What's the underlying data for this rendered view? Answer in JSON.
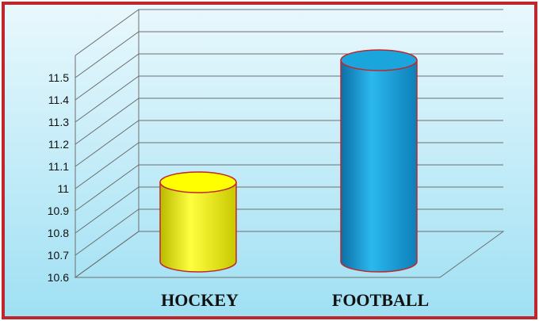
{
  "colors": {
    "frame": "#c0272d",
    "background_top": "#e9f8fd",
    "background_bottom": "#9fe0f3",
    "grid": "#6e6e6e",
    "cylinder_outline": "#c0272d",
    "series_colors": [
      "#ffff00",
      "#1aa6dc"
    ]
  },
  "chart_data": {
    "type": "bar",
    "style": "3d-cylinder",
    "categories": [
      "HOCKEY",
      "FOOTBALL"
    ],
    "values": [
      10.95,
      11.5
    ],
    "ylim": [
      10.6,
      11.5
    ],
    "yticks": [
      10.6,
      10.7,
      10.8,
      10.9,
      11,
      11.1,
      11.2,
      11.3,
      11.4,
      11.5
    ],
    "ytick_labels": [
      "10.6",
      "10.7",
      "10.8",
      "10.9",
      "11",
      "11.1",
      "11.2",
      "11.3",
      "11.4",
      "11.5"
    ],
    "grid": true,
    "legend": "none",
    "title": "",
    "xlabel": "",
    "ylabel": ""
  }
}
